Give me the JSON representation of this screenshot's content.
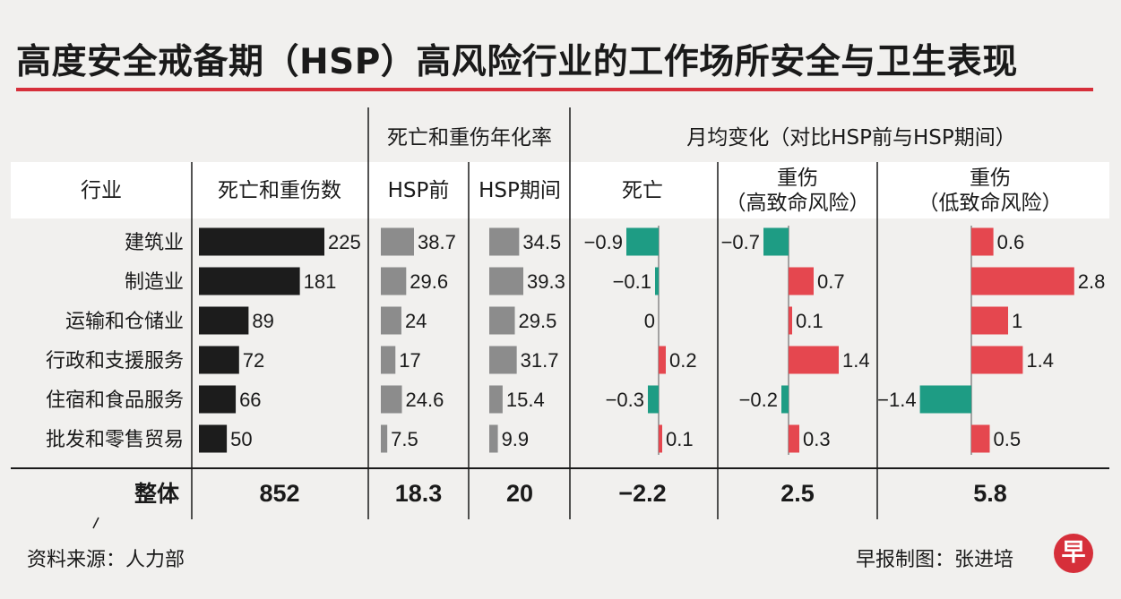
{
  "title": "高度安全戒备期（HSP）高风险行业的工作场所安全与卫生表现",
  "headers": {
    "group_rate": "死亡和重伤年化率",
    "group_change": "月均变化（对比HSP前与HSP期间）",
    "industry": "行业",
    "cases": "死亡和重伤数",
    "before": "HSP前",
    "during": "HSP期间",
    "death": "死亡",
    "high_l1": "重伤",
    "high_l2": "（高致命风险）",
    "low_l1": "重伤",
    "low_l2": "（低致命风险）"
  },
  "chart_data": {
    "type": "bar",
    "categories": [
      "建筑业",
      "制造业",
      "运输和仓储业",
      "行政和支援服务",
      "住宿和食品服务",
      "批发和零售贸易"
    ],
    "series": [
      {
        "name": "死亡和重伤数",
        "values": [
          225,
          181,
          89,
          72,
          66,
          50
        ],
        "color": "#1c1c1c"
      },
      {
        "name": "HSP前",
        "values": [
          38.7,
          29.6,
          24,
          17,
          24.6,
          7.5
        ],
        "color": "#8c8c8c"
      },
      {
        "name": "HSP期间",
        "values": [
          34.5,
          39.3,
          29.5,
          31.7,
          15.4,
          9.9
        ],
        "color": "#8c8c8c"
      },
      {
        "name": "死亡",
        "values": [
          -0.9,
          -0.1,
          0,
          0.2,
          -0.3,
          0.1
        ]
      },
      {
        "name": "重伤（高致命风险）",
        "values": [
          -0.7,
          0.7,
          0.1,
          1.4,
          -0.2,
          0.3
        ]
      },
      {
        "name": "重伤（低致命风险）",
        "values": [
          0.6,
          2.8,
          1,
          1.4,
          -1.4,
          0.5
        ]
      }
    ],
    "labels": [
      [
        "225",
        "181",
        "89",
        "72",
        "66",
        "50"
      ],
      [
        "38.7",
        "29.6",
        "24",
        "17",
        "24.6",
        "7.5"
      ],
      [
        "34.5",
        "39.3",
        "29.5",
        "31.7",
        "15.4",
        "9.9"
      ],
      [
        "−0.9",
        "−0.1",
        "0",
        "0.2",
        "−0.3",
        "0.1"
      ],
      [
        "−0.7",
        "0.7",
        "0.1",
        "1.4",
        "−0.2",
        "0.3"
      ],
      [
        "0.6",
        "2.8",
        "1",
        "1.4",
        "−1.4",
        "0.5"
      ]
    ],
    "colors": {
      "positive": "#e5474f",
      "negative": "#1e9c84"
    }
  },
  "total": {
    "label": "整体",
    "values": [
      "852",
      "18.3",
      "20",
      "−2.2",
      "2.5",
      "5.8"
    ]
  },
  "footer": {
    "source": "资料来源：人力部",
    "credit": "早报制图：张进培",
    "logo": "早"
  }
}
